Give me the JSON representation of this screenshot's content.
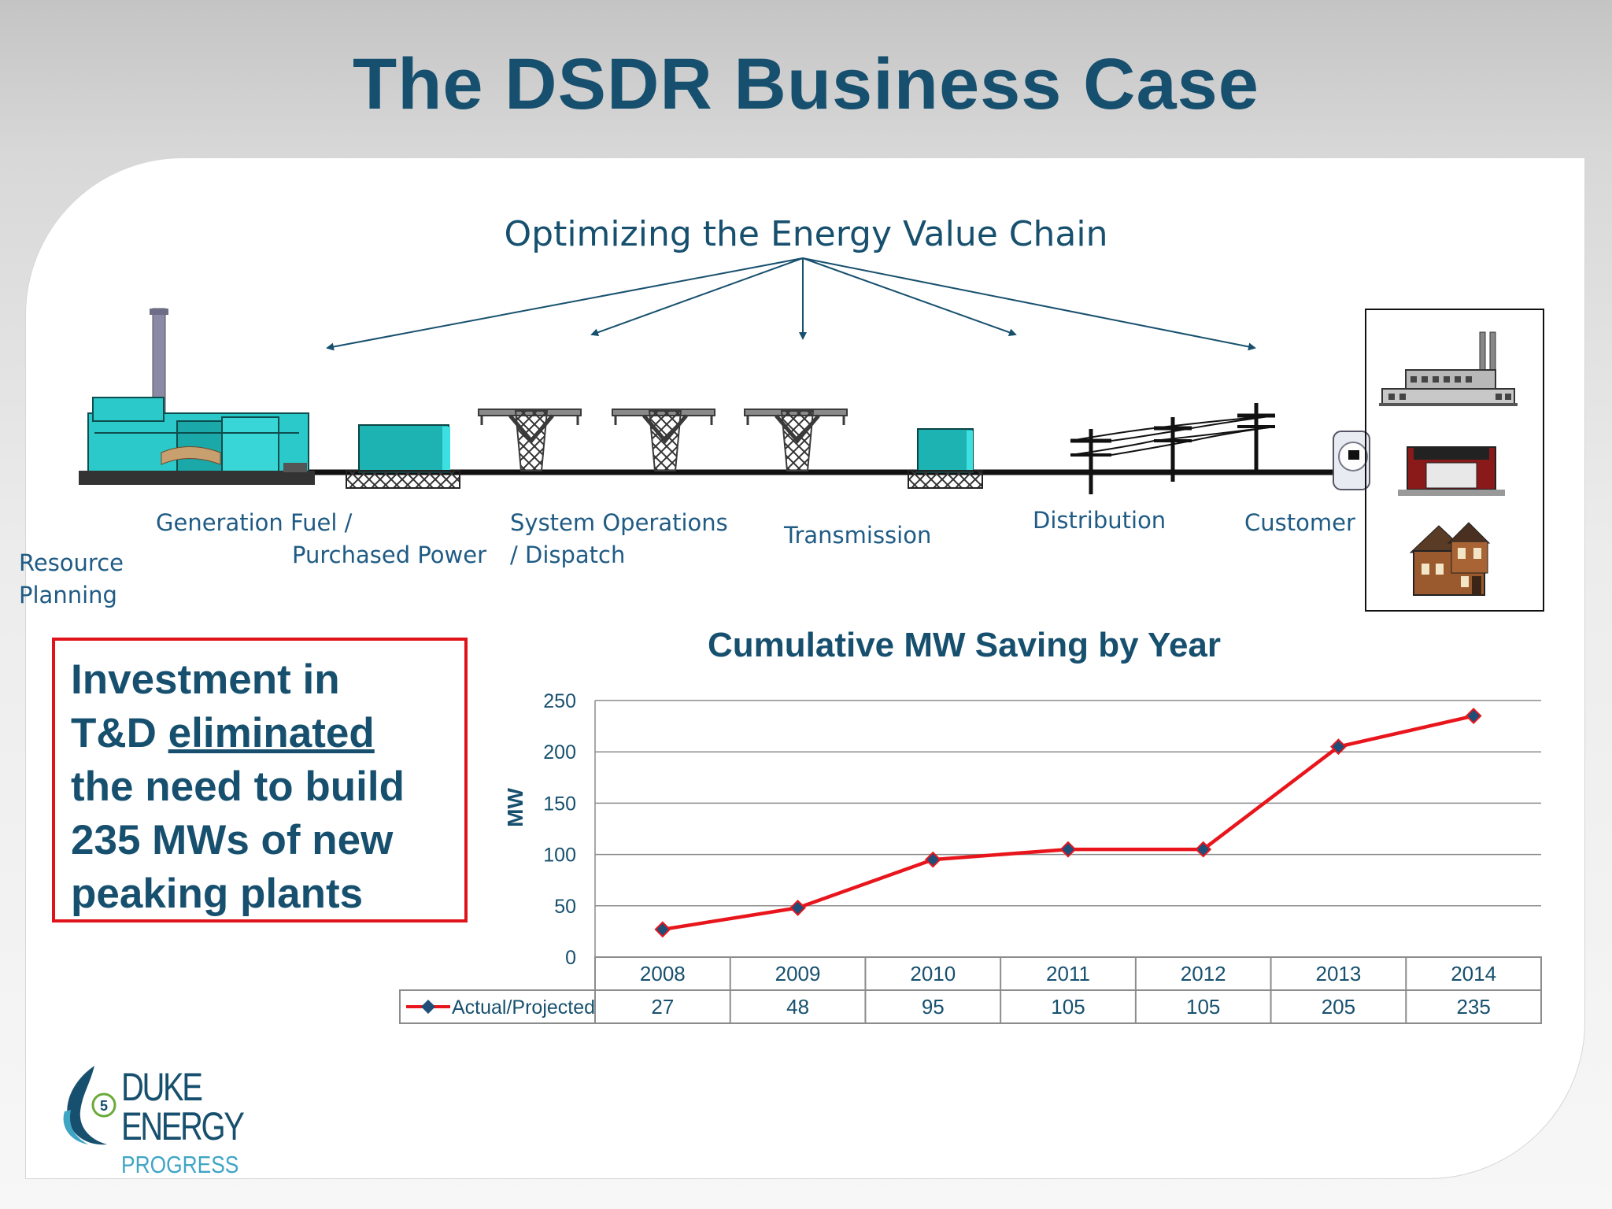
{
  "slide": {
    "title": "The DSDR Business Case"
  },
  "value_chain": {
    "title": "Optimizing the Energy Value Chain",
    "stages": [
      {
        "id": "resource",
        "lines": [
          "Resource",
          "Planning"
        ]
      },
      {
        "id": "generation",
        "lines": [
          "Generation Fuel /",
          "Purchased Power"
        ]
      },
      {
        "id": "sysops",
        "lines": [
          "System Operations",
          "/ Dispatch"
        ]
      },
      {
        "id": "transmission",
        "lines": [
          "Transmission"
        ]
      },
      {
        "id": "distribution",
        "lines": [
          "Distribution"
        ]
      },
      {
        "id": "customer",
        "lines": [
          "Customer"
        ]
      }
    ],
    "line_color": "#17506e"
  },
  "callout": {
    "line1": "Investment in",
    "line2_pre": "T&D ",
    "line2_underlined": "eliminated",
    "line3": "the need to build",
    "line4": "235 MWs of new",
    "line5": "peaking plants",
    "border_color": "#e0131b"
  },
  "chart_data": {
    "type": "line",
    "title": "Cumulative MW Saving by Year",
    "ylabel": "MW",
    "xlabel": "",
    "categories": [
      "2008",
      "2009",
      "2010",
      "2011",
      "2012",
      "2013",
      "2014"
    ],
    "series": [
      {
        "name": "Actual/Projected",
        "values": [
          27,
          48,
          95,
          105,
          105,
          205,
          235
        ],
        "color": "#e8161c",
        "marker_color": "#1f4e79"
      }
    ],
    "ylim": [
      0,
      250
    ],
    "yticks": [
      0,
      50,
      100,
      150,
      200,
      250
    ],
    "grid": true,
    "data_table": true
  },
  "logo": {
    "line1": "DUKE",
    "line2": "ENERGY",
    "line3": "PROGRESS",
    "badge_number": "5"
  }
}
